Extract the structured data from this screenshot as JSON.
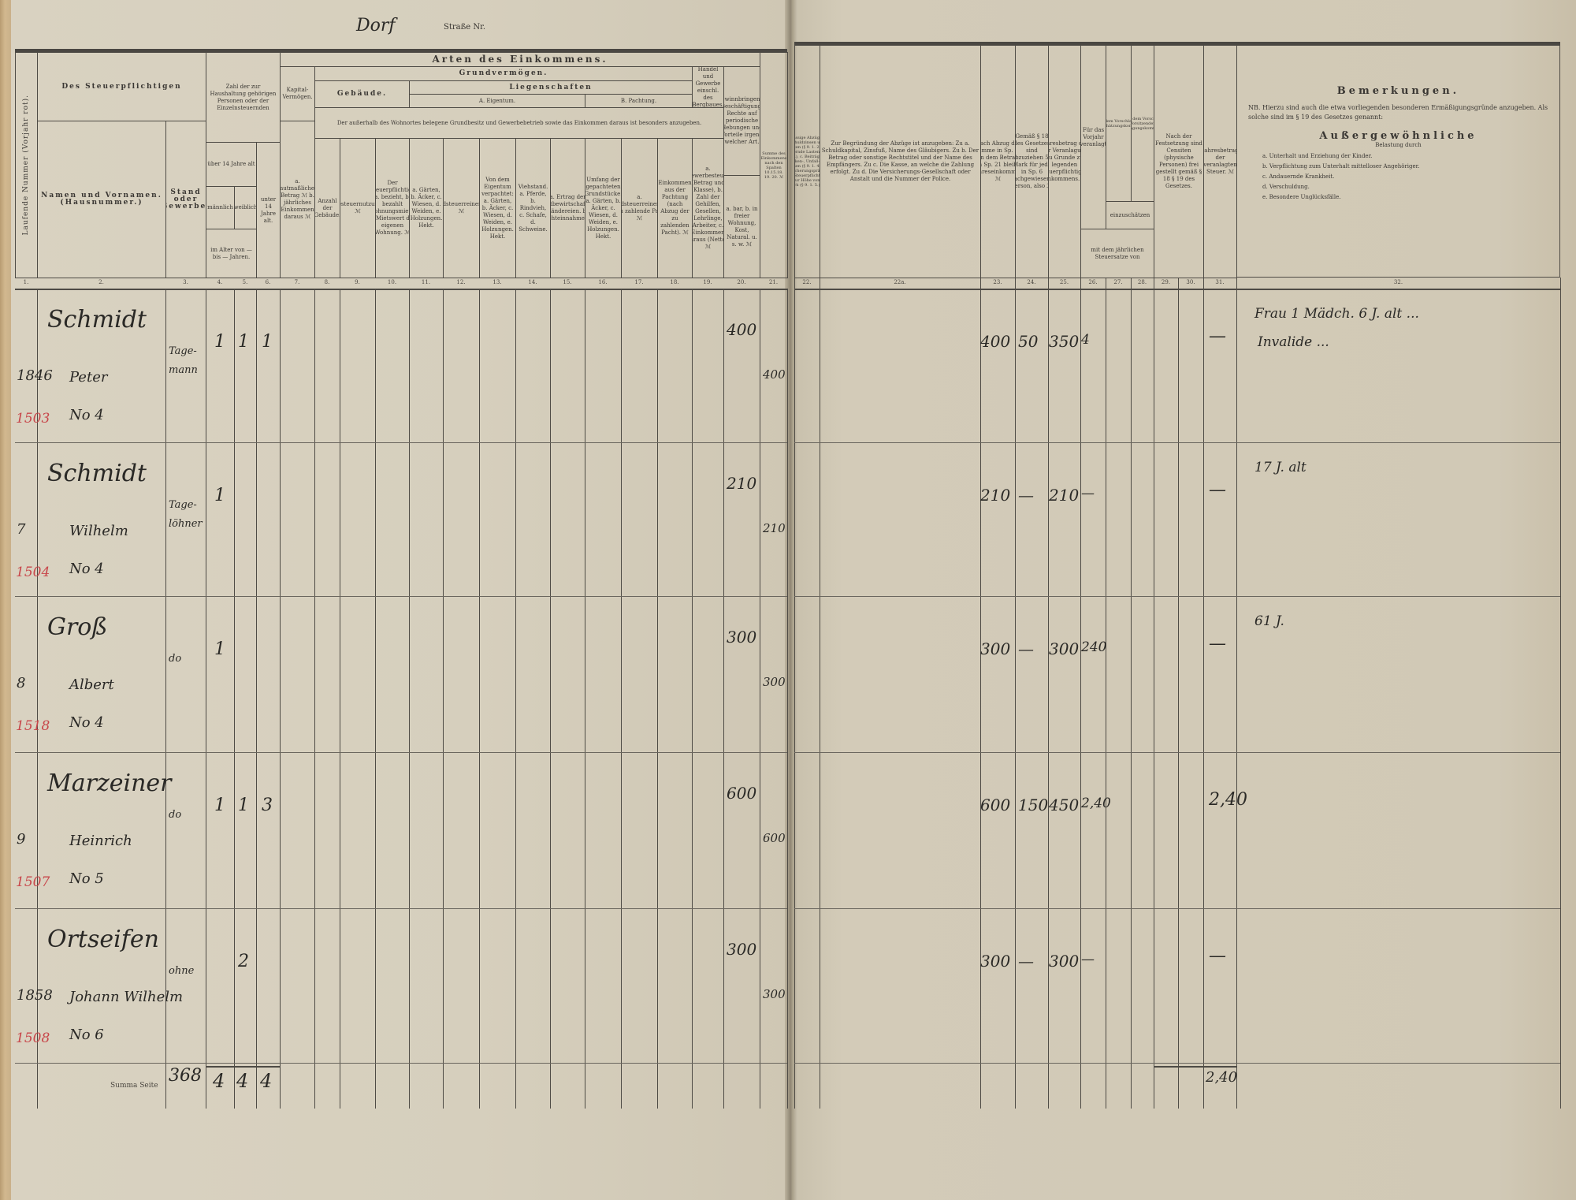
{
  "header": {
    "place": "Dorf",
    "street_label": "Straße Nr."
  },
  "headers": {
    "c1": "Laufende Nummer (Vorjahr rot).",
    "taxpayer": "Des Steuerpflichtigen",
    "c2": "Namen und Vornamen. (Hausnummer.)",
    "c3": "Stand oder Gewerbe.",
    "persons": "Zahl der zur Haushaltung gehörigen Personen oder der Einzelnsteuernden",
    "over14": "über 14 Jahre alt",
    "c4": "männlich",
    "c5": "weiblich",
    "agerange": "im Alter von — bis — Jahren.",
    "c6": "unter 14 Jahre alt.",
    "income_types": "Arten des Einkommens.",
    "capital": "Kapital-Vermögen.",
    "c7": "a. mutmaßlicher Betrag ℳ  b. jährliches Einkommen daraus ℳ",
    "land": "Grundvermögen.",
    "buildings": "Gebäude.",
    "estates": "Liegenschaften",
    "own": "A. Eigentum.",
    "lease": "B. Pachtung.",
    "outside_note": "Der außerhalb des Wohnortes belegene Grundbesitz und Gewerbebetrieb sowie das Einkommen daraus ist besonders anzugeben.",
    "trade": "Handel und Gewerbe einschl. des Bergbaues.",
    "gainful": "Gewinnbringende Beschäftigung. Rechte auf periodische Hebungen und Vorteile irgend welcher Art.",
    "c8": "Anzahl der Gebäude.",
    "c9": "Gebäudesteuernutzungswert. ℳ",
    "c10": "Der Steuerpflichtige a. bezieht, b. bezahlt Wohnungsmiete, c. Mietswert der eigenen Wohnung. ℳ",
    "c11": "a. Gärten, b. Äcker, c. Wiesen, d. Weiden, e. Holzungen. Hekt.",
    "c12": "Grundsteuerreinertrag. ℳ",
    "c13": "Von dem Eigentum verpachtet: a. Gärten, b. Äcker, c. Wiesen, d. Weiden, e. Holzungen. Hekt.",
    "c14": "Viehstand. a. Pferde, b. Rindvieh, c. Schafe, d. Schweine.",
    "c15": "a. Ertrag der selbstbewirtschafteten Ländereien. b. Pachteinnahme. ℳ",
    "c16": "Umfang der gepachteten Grundstücke. a. Gärten, b. Äcker, c. Wiesen, d. Weiden, e. Holzungen. Hekt.",
    "c17": "a. Grundsteuerreinertrag, b. zu zahlende Pacht. ℳ",
    "c18": "Einkommen aus der Pachtung (nach Abzug der zu zahlenden Pacht). ℳ",
    "c19": "a. Gewerbesteuer (Betrag und Klasse), b. Zahl der Gehilfen, Gesellen, Lehrlinge, Arbeiter, c. Einkommen daraus (Netto). ℳ",
    "c20": "a. bar, b. in freier Wohnung, Kost, Natural. u. s. w. ℳ",
    "c21": "Summe des Einkommens nach den Spalten 10.15.18. 19. 20. ℳ",
    "c22": "Zulässige Abzüge: a. Schuldzinsen und Renten (§ 9. 1. 2.), b. Dauernde Lasten (§ 9. 1. 3.), c. Beiträge zu Kranken-, Unfall- u. a. Kassen (§ 9. 1. 4.), d. Versicherungsprämien des Steuerpflichtigen bis zur Höhe von 600 Mark (§ 9. 1. 5.). ℳ",
    "c22a": "Zur Begründung der Abzüge ist anzugeben: Zu a. Schuldkapital, Zinsfuß, Name des Gläubigers. Zu b. Der Betrag oder sonstige Rechtstitel und der Name des Empfängers. Zu c. Die Kasse, an welche die Zahlung erfolgt. Zu d. Die Versicherungs-Gesellschaft oder Anstalt und die Nummer der Police.",
    "c23": "Nach Abzug der Summe in Sp. 22 von dem Betrage in Sp. 21 bleibt Jahreseinkommen ℳ",
    "c24": "Gemäß § 18 des Gesetzes sind abzuziehen 50 Mark für jede in Sp. 6 nachgewiesene Person, also ℳ",
    "c25": "Jahresbetrag des der Veranlagung zu Grunde zu legenden steuerpflichtigen Einkommens. ℳ",
    "c26": "Für das Vorjahr veranlagt",
    "c27": "Nach dem Vorschlage der Voreinschätzungskommission",
    "c28": "Nach dem Vorschlage des Vorsitzenden der Veranlagungskommission",
    "assess": "einzuschätzen",
    "rate": "mit dem jährlichen Steuersatze von",
    "c29_30": "Nach der Festsetzung sind Censiten (physische Personen) frei gestellt gemäß § 18  § 19 des Gesetzes.",
    "c31": "Jahresbetrag der veranlagten Steuer. ℳ"
  },
  "column_numbers_left": [
    "1.",
    "2.",
    "3.",
    "4.",
    "5.",
    "6.",
    "7.",
    "8.",
    "9.",
    "10.",
    "11.",
    "12.",
    "13.",
    "14.",
    "15.",
    "16.",
    "17.",
    "18.",
    "19.",
    "20.",
    "21."
  ],
  "column_numbers_right": [
    "22.",
    "22a.",
    "23.",
    "24.",
    "25.",
    "26.",
    "27.",
    "28.",
    "29.",
    "30.",
    "31.",
    "32."
  ],
  "remarks": {
    "title": "Bemerkungen.",
    "note": "NB. Hierzu sind auch die etwa vorliegenden besonderen Ermäßigungsgründe anzugeben. Als solche sind im § 19 des Gesetzes genannt:",
    "subtitle": "Außergewöhnliche",
    "subtitle2": "Belastung durch",
    "items": [
      "a. Unterhalt und Erziehung der Kinder.",
      "b. Verpflichtung zum Unterhalt mittelloser Angehöriger.",
      "c. Andauernde Krankheit.",
      "d. Verschuldung.",
      "e. Besondere Unglücksfälle."
    ]
  },
  "rows": [
    {
      "margin_no": "1846",
      "prev_no_red": "1503",
      "surname": "Schmidt",
      "firstname": "Peter",
      "house": "No 4",
      "stand": [
        "Tage-",
        "mann"
      ],
      "male": "1",
      "female": "1",
      "under14": "1",
      "c20": "400",
      "c21": "400",
      "c23": "400",
      "c24": "50",
      "c25": "350",
      "c26": "4",
      "c31": "—",
      "remark": [
        "Frau 1 Mädch. 6 J. alt ...",
        "Invalide ..."
      ]
    },
    {
      "margin_no": "7",
      "prev_no_red": "1504",
      "surname": "Schmidt",
      "firstname": "Wilhelm",
      "house": "No 4",
      "stand": [
        "Tage-",
        "löhner"
      ],
      "male": "1",
      "female": "",
      "under14": "",
      "c20": "210",
      "c21": "210",
      "c23": "210",
      "c24": "—",
      "c25": "210",
      "c26": "—",
      "c31": "—",
      "remark": [
        "17 J. alt",
        ""
      ]
    },
    {
      "margin_no": "8",
      "prev_no_red": "1518",
      "surname": "Groß",
      "firstname": "Albert",
      "house": "No 4",
      "stand": [
        "do",
        ""
      ],
      "male": "1",
      "female": "",
      "under14": "",
      "c20": "300",
      "c21": "300",
      "c23": "300",
      "c24": "—",
      "c25": "300",
      "c26": "240",
      "c31": "—",
      "remark": [
        "61 J.",
        ""
      ]
    },
    {
      "margin_no": "9",
      "prev_no_red": "1507",
      "surname": "Marzeiner",
      "firstname": "Heinrich",
      "house": "No 5",
      "stand": [
        "do",
        ""
      ],
      "male": "1",
      "female": "1",
      "under14": "3",
      "c20": "600",
      "c21": "600",
      "c23": "600",
      "c24": "150",
      "c25": "450",
      "c26": "2,40",
      "c31": "2,40",
      "remark": [
        "",
        ""
      ]
    },
    {
      "margin_no": "1858",
      "prev_no_red": "1508",
      "surname": "Ortseifen",
      "firstname": "Johann Wilhelm",
      "house": "No 6",
      "stand": [
        "ohne",
        ""
      ],
      "male": "",
      "female": "2",
      "under14": "",
      "c20": "300",
      "c21": "300",
      "c23": "300",
      "c24": "—",
      "c25": "300",
      "c26": "—",
      "c31": "—",
      "remark": [
        "",
        ""
      ]
    }
  ],
  "totals": {
    "label": "Summa Seite",
    "count": "368",
    "male": "4",
    "female": "4",
    "under14": "4",
    "tax": "2,40"
  },
  "colors": {
    "paper": "#d5cebc",
    "ink": "#2a2926",
    "red_ink": "#c8464a",
    "rule": "#4e4b45"
  }
}
